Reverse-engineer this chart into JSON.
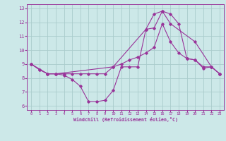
{
  "xlabel": "Windchill (Refroidissement éolien,°C)",
  "background_color": "#cce8e8",
  "line_color": "#993399",
  "grid_color": "#aacccc",
  "xlim": [
    -0.5,
    23.5
  ],
  "ylim": [
    5.7,
    13.3
  ],
  "xticks": [
    0,
    1,
    2,
    3,
    4,
    5,
    6,
    7,
    8,
    9,
    10,
    11,
    12,
    13,
    14,
    15,
    16,
    17,
    18,
    19,
    20,
    21,
    22,
    23
  ],
  "yticks": [
    6,
    7,
    8,
    9,
    10,
    11,
    12,
    13
  ],
  "line1_x": [
    0,
    1,
    2,
    3,
    4,
    5,
    6,
    7,
    8,
    9,
    10,
    11,
    12,
    13,
    14,
    15,
    16,
    17,
    18,
    19,
    20,
    21,
    22,
    23
  ],
  "line1_y": [
    9.0,
    8.6,
    8.3,
    8.3,
    8.2,
    7.9,
    7.4,
    6.3,
    6.3,
    6.4,
    7.1,
    8.8,
    8.8,
    8.8,
    11.5,
    11.6,
    12.8,
    12.6,
    11.9,
    9.4,
    9.3,
    8.7,
    8.8,
    8.3
  ],
  "line2_x": [
    0,
    2,
    3,
    10,
    14,
    15,
    16,
    17,
    20,
    22,
    23
  ],
  "line2_y": [
    9.0,
    8.3,
    8.3,
    8.8,
    11.5,
    12.6,
    12.8,
    11.9,
    10.6,
    8.8,
    8.3
  ],
  "line3_x": [
    0,
    1,
    2,
    3,
    4,
    5,
    6,
    7,
    8,
    9,
    10,
    11,
    12,
    13,
    14,
    15,
    16,
    17,
    18,
    19,
    20,
    21,
    22,
    23
  ],
  "line3_y": [
    9.0,
    8.6,
    8.3,
    8.3,
    8.3,
    8.3,
    8.3,
    8.3,
    8.3,
    8.3,
    8.8,
    9.0,
    9.3,
    9.5,
    9.8,
    10.2,
    11.9,
    10.6,
    9.8,
    9.4,
    9.3,
    8.8,
    8.8,
    8.3
  ]
}
